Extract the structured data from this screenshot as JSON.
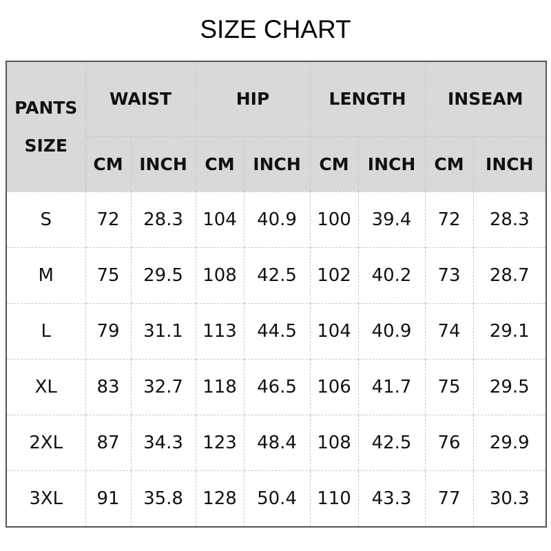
{
  "title": "SIZE CHART",
  "header": {
    "size_label": "PANTS SIZE",
    "groups": [
      "WAIST",
      "HIP",
      "LENGTH",
      "INSEAM"
    ],
    "units": [
      "CM",
      "INCH"
    ]
  },
  "rows": [
    [
      "S",
      "72",
      "28.3",
      "104",
      "40.9",
      "100",
      "39.4",
      "72",
      "28.3"
    ],
    [
      "M",
      "75",
      "29.5",
      "108",
      "42.5",
      "102",
      "40.2",
      "73",
      "28.7"
    ],
    [
      "L",
      "79",
      "31.1",
      "113",
      "44.5",
      "104",
      "40.9",
      "74",
      "29.1"
    ],
    [
      "XL",
      "83",
      "32.7",
      "118",
      "46.5",
      "106",
      "41.7",
      "75",
      "29.5"
    ],
    [
      "2XL",
      "87",
      "34.3",
      "123",
      "48.4",
      "108",
      "42.5",
      "76",
      "29.9"
    ],
    [
      "3XL",
      "91",
      "35.8",
      "128",
      "50.4",
      "110",
      "43.3",
      "77",
      "30.3"
    ]
  ],
  "colors": {
    "header_bg": "#d9d9d9",
    "border": "#555555"
  }
}
